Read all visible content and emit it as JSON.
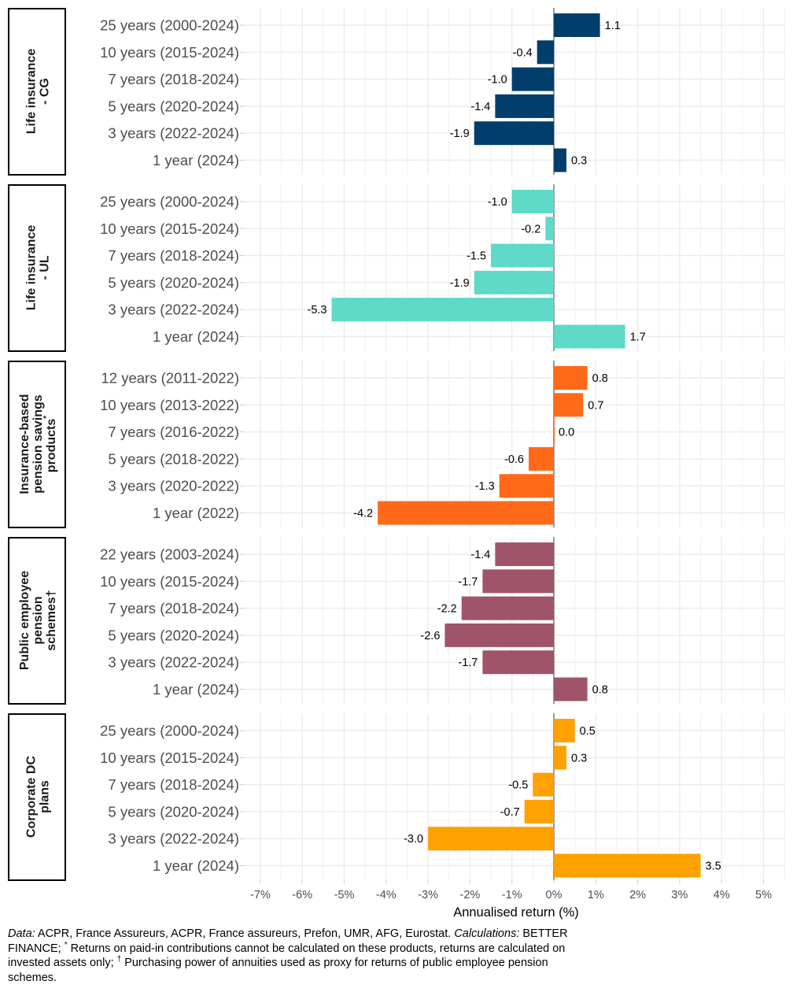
{
  "chart_data": {
    "type": "bar",
    "orientation": "horizontal",
    "xlabel": "Annualised return  (%)",
    "xlim": [
      -7,
      5
    ],
    "xticks": [
      "-7%",
      "-6%",
      "-5%",
      "-4%",
      "-3%",
      "-2%",
      "-1%",
      "0%",
      "1%",
      "2%",
      "3%",
      "4%",
      "5%"
    ],
    "grid": true,
    "panels": [
      {
        "label": "Life insurance\n- CG",
        "color": "#023e6b",
        "categories": [
          "25 years (2000-2024)",
          "10 years (2015-2024)",
          "7 years (2018-2024)",
          "5 years (2020-2024)",
          "3 years (2022-2024)",
          "1 year (2024)"
        ],
        "values": [
          1.1,
          -0.4,
          -1.0,
          -1.4,
          -1.9,
          0.3
        ]
      },
      {
        "label": "Life insurance\n- UL",
        "color": "#5fd9c8",
        "categories": [
          "25 years (2000-2024)",
          "10 years (2015-2024)",
          "7 years (2018-2024)",
          "5 years (2020-2024)",
          "3 years (2022-2024)",
          "1 year (2024)"
        ],
        "values": [
          -1.0,
          -0.2,
          -1.5,
          -1.9,
          -5.3,
          1.7
        ]
      },
      {
        "label": "Insurance-based\npension savings\nproducts*",
        "color": "#fe6a1a",
        "categories": [
          "12 years (2011-2022)",
          "10 years (2013-2022)",
          "7 years (2016-2022)",
          "5 years (2018-2022)",
          "3 years (2020-2022)",
          "1 year (2022)"
        ],
        "values": [
          0.8,
          0.7,
          0.0,
          -0.6,
          -1.3,
          -4.2
        ]
      },
      {
        "label": "Public employee\npension\nschemes†",
        "color": "#a05469",
        "categories": [
          "22 years (2003-2024)",
          "10 years (2015-2024)",
          "7 years (2018-2024)",
          "5 years (2020-2024)",
          "3 years (2022-2024)",
          "1 year (2024)"
        ],
        "values": [
          -1.4,
          -1.7,
          -2.2,
          -2.6,
          -1.7,
          0.8
        ]
      },
      {
        "label": "Corporate DC\nplans",
        "color": "#ffa100",
        "categories": [
          "25 years (2000-2024)",
          "10 years (2015-2024)",
          "7 years (2018-2024)",
          "5 years (2020-2024)",
          "3 years (2022-2024)",
          "1 year (2024)"
        ],
        "values": [
          0.5,
          0.3,
          -0.5,
          -0.7,
          -3.0,
          3.5
        ]
      }
    ]
  },
  "footnote": {
    "data_label": "Data:",
    "data_text": " ACPR, France Assureurs, ACPR, France assureurs, Prefon, UMR, AFG, Eurostat. ",
    "calc_label": "Calculations:",
    "calc_text": " BETTER FINANCE; ",
    "star": "*",
    "star_text": " Returns on paid-in contributions cannot be calculated on these products, returns are calculated on invested assets only; ",
    "dagger": "†",
    "dagger_text": " Purchasing power of annuities used as proxy for returns of public employee pension schemes."
  }
}
